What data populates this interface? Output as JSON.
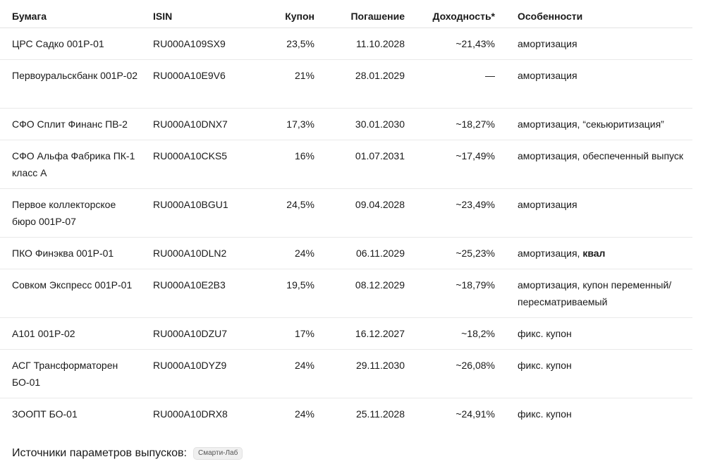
{
  "table": {
    "headers": {
      "name": "Бумага",
      "isin": "ISIN",
      "coupon": "Купон",
      "maturity": "Погашение",
      "yield": "Доходность*",
      "features": "Особенности"
    },
    "rows": [
      {
        "name": "ЦРС Садко 001Р-01",
        "isin": "RU000A109SX9",
        "coupon": "23,5%",
        "maturity": "11.10.2028",
        "yield": "~21,43%",
        "features": "амортизация",
        "features_bold": ""
      },
      {
        "name": "Первоуральскбанк 001Р-02",
        "isin": "RU000A10E9V6",
        "coupon": "21%",
        "maturity": "28.01.2029",
        "yield": "—",
        "features": "амортизация",
        "features_bold": ""
      },
      {
        "name": "СФО Сплит Финанс ПВ-2",
        "isin": "RU000A10DNX7",
        "coupon": "17,3%",
        "maturity": "30.01.2030",
        "yield": "~18,27%",
        "features": "амортизация, “секьюритизация”",
        "features_bold": ""
      },
      {
        "name": "СФО Альфа Фабрика ПК-1 класс А",
        "isin": "RU000A10CKS5",
        "coupon": "16%",
        "maturity": "01.07.2031",
        "yield": "~17,49%",
        "features": "амортизация, обеспеченный выпуск",
        "features_bold": ""
      },
      {
        "name": "Первое коллекторское бюро 001Р-07",
        "isin": "RU000A10BGU1",
        "coupon": "24,5%",
        "maturity": "09.04.2028",
        "yield": "~23,49%",
        "features": "амортизация",
        "features_bold": ""
      },
      {
        "name": "ПКО Финэква 001Р-01",
        "isin": "RU000A10DLN2",
        "coupon": "24%",
        "maturity": "06.11.2029",
        "yield": "~25,23%",
        "features": "амортизация, ",
        "features_bold": "квал"
      },
      {
        "name": "Совком Экспресс 001Р-01",
        "isin": "RU000A10E2B3",
        "coupon": "19,5%",
        "maturity": "08.12.2029",
        "yield": "~18,79%",
        "features": "амортизация, купон переменный/ пересматриваемый",
        "features_bold": ""
      },
      {
        "name": "А101 001Р-02",
        "isin": "RU000A10DZU7",
        "coupon": "17%",
        "maturity": "16.12.2027",
        "yield": "~18,2%",
        "features": "фикс. купон",
        "features_bold": ""
      },
      {
        "name": "АСГ Трансформаторен БО-01",
        "isin": "RU000A10DYZ9",
        "coupon": "24%",
        "maturity": "29.11.2030",
        "yield": "~26,08%",
        "features": "фикс. купон",
        "features_bold": ""
      },
      {
        "name": "ЗООПТ БО-01",
        "isin": "RU000A10DRX8",
        "coupon": "24%",
        "maturity": "25.11.2028",
        "yield": "~24,91%",
        "features": "фикс. купон",
        "features_bold": ""
      }
    ]
  },
  "footer": {
    "label": "Источники параметров выпусков:",
    "source_chip": "Смарти-Лаб"
  }
}
